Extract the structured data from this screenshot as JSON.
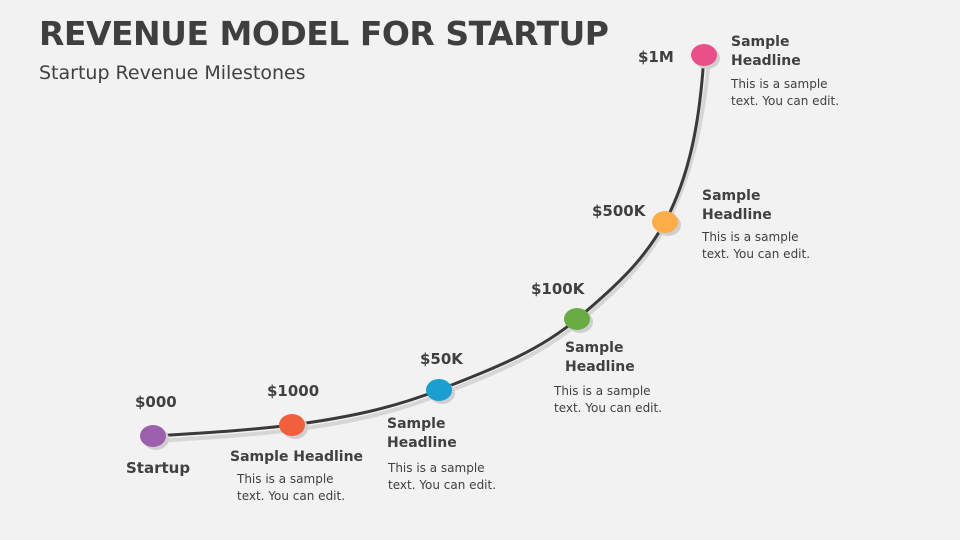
{
  "title": "REVENUE MODEL FOR STARTUP",
  "subtitle": "Startup Revenue Milestones",
  "milestones": [
    {
      "amount": "$000",
      "headline": "Startup",
      "text": "",
      "color": "#9b5fab"
    },
    {
      "amount": "$1000",
      "headline": "Sample Headline",
      "text": "This is a sample text. You can edit.",
      "color": "#f0603c"
    },
    {
      "amount": "$50K",
      "headline": "Sample Headline",
      "text": "This is a sample text. You can edit.",
      "color": "#1a9fd0"
    },
    {
      "amount": "$100K",
      "headline": "Sample Headline",
      "text": "This is a sample text. You can edit.",
      "color": "#6aac44"
    },
    {
      "amount": "$500K",
      "headline": "Sample Headline",
      "text": "This is a sample text. You can edit.",
      "color": "#fdad4a"
    },
    {
      "amount": "$1M",
      "headline": "Sample Headline",
      "text": "This is a sample text. You can edit.",
      "color": "#e9508a"
    }
  ]
}
